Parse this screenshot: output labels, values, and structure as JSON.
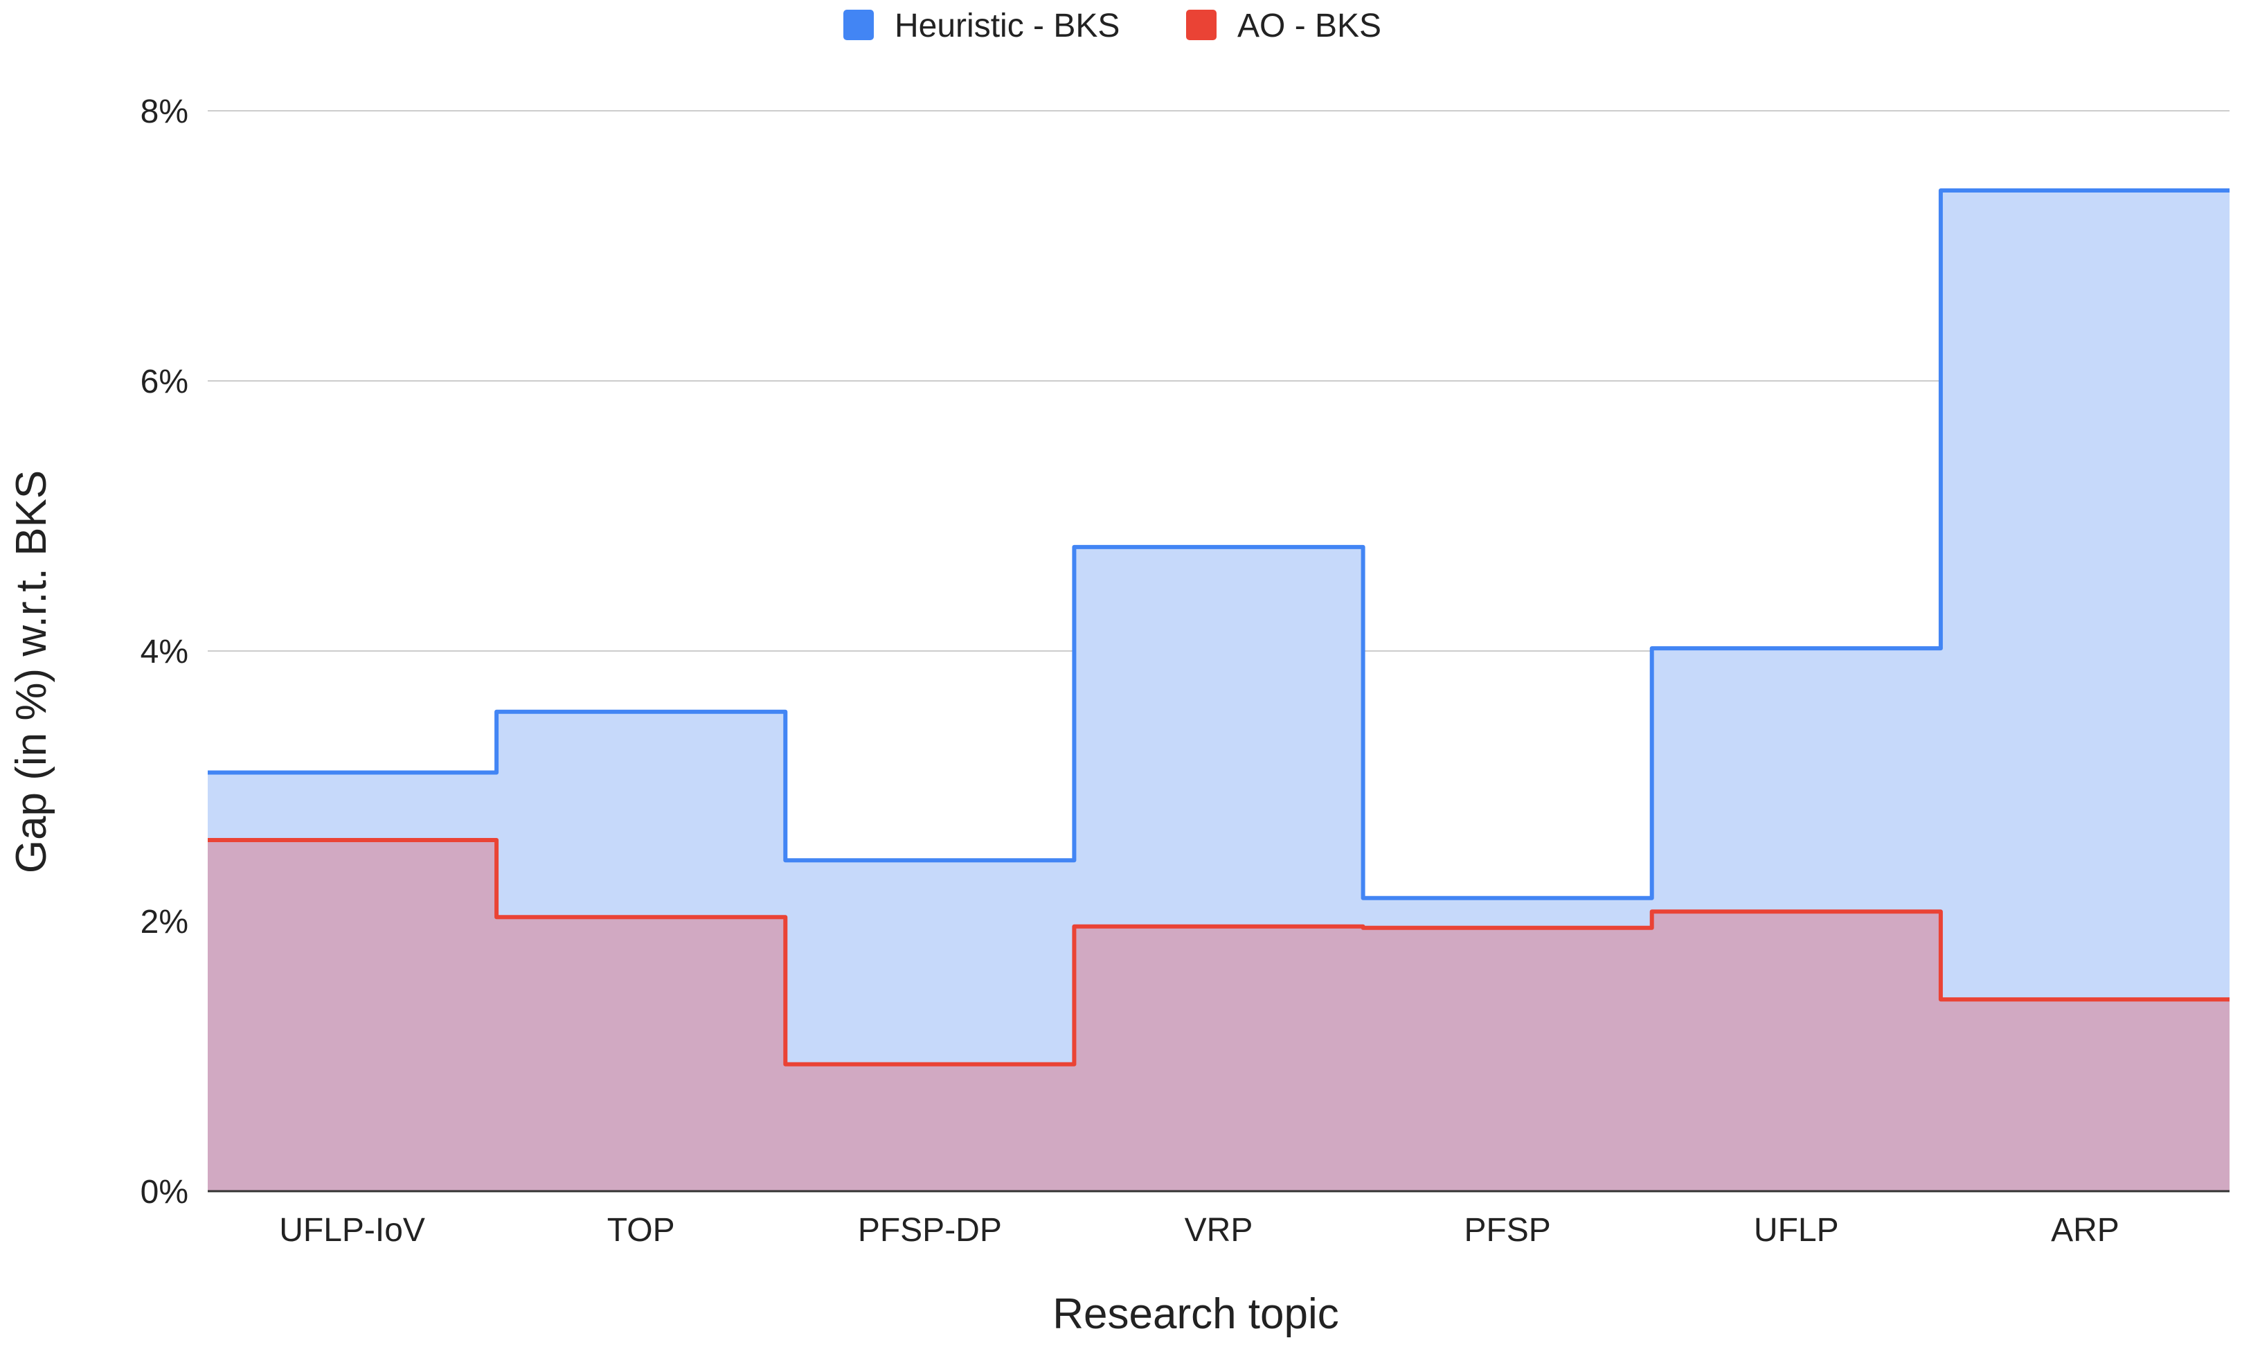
{
  "chart_data": {
    "type": "area",
    "step": true,
    "categories": [
      "UFLP-IoV",
      "TOP",
      "PFSP-DP",
      "VRP",
      "PFSP",
      "UFLP",
      "ARP"
    ],
    "series": [
      {
        "name": "Heuristic - BKS",
        "values": [
          3.1,
          3.55,
          2.45,
          4.77,
          2.17,
          4.02,
          7.41
        ],
        "line_color": "#4285f4",
        "fill_color": "#c6d9fa"
      },
      {
        "name": "AO - BKS",
        "values": [
          2.6,
          2.03,
          0.94,
          1.96,
          1.95,
          2.07,
          1.42
        ],
        "line_color": "#ea4335",
        "fill_color": "#d1a9c2"
      }
    ],
    "xlabel": "Research topic",
    "ylabel": "Gap (in %) w.r.t. BKS",
    "ylim": [
      0,
      8
    ],
    "yticks": [
      "0%",
      "2%",
      "4%",
      "6%",
      "8%"
    ],
    "grid": true,
    "legend_position": "top-center"
  }
}
